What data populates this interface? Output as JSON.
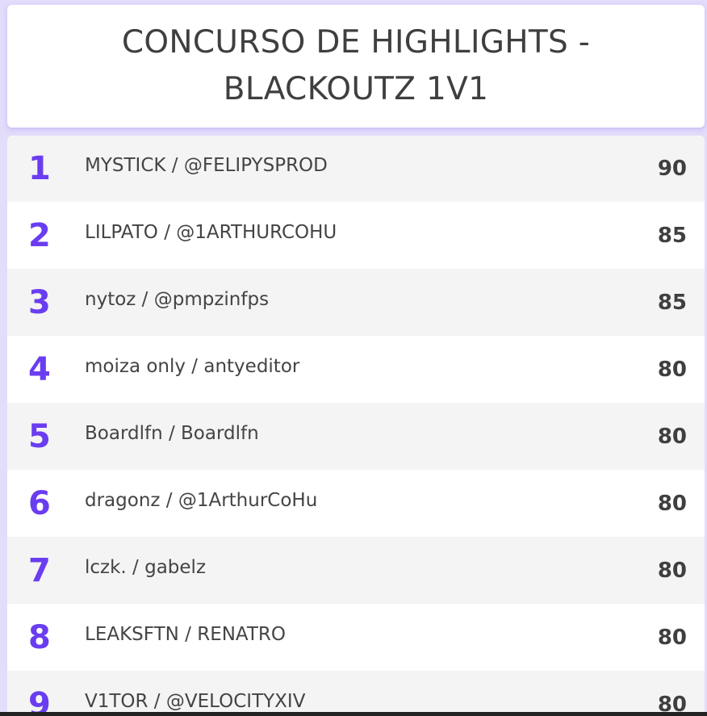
{
  "title": "CONCURSO DE HIGHLIGHTS - BLACKOUTZ 1V1",
  "colors": {
    "background": "#e3dcfb",
    "rank": "#6a3df0",
    "text": "#444444"
  },
  "rows": [
    {
      "rank": "1",
      "name": "MYSTICK / @FELIPYSPROD",
      "score": "90"
    },
    {
      "rank": "2",
      "name": "LILPATO / @1ARTHURCOHU",
      "score": "85"
    },
    {
      "rank": "3",
      "name": "nytoz / @pmpzinfps",
      "score": "85"
    },
    {
      "rank": "4",
      "name": "moiza only / antyeditor",
      "score": "80"
    },
    {
      "rank": "5",
      "name": "Boardlfn / Boardlfn",
      "score": "80"
    },
    {
      "rank": "6",
      "name": "dragonz / @1ArthurCoHu",
      "score": "80"
    },
    {
      "rank": "7",
      "name": "lczk. / gabelz",
      "score": "80"
    },
    {
      "rank": "8",
      "name": "LEAKSFTN / RENATRO",
      "score": "80"
    },
    {
      "rank": "9",
      "name": "V1TOR / @VELOCITYXIV",
      "score": "80"
    }
  ]
}
